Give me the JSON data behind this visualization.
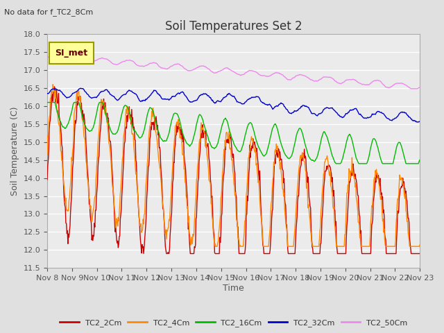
{
  "title": "Soil Temperatures Set 2",
  "subtitle": "No data for f_TC2_8Cm",
  "xlabel": "Time",
  "ylabel": "Soil Temperature (C)",
  "ylim": [
    11.5,
    18.0
  ],
  "yticks": [
    11.5,
    12.0,
    12.5,
    13.0,
    13.5,
    14.0,
    14.5,
    15.0,
    15.5,
    16.0,
    16.5,
    17.0,
    17.5,
    18.0
  ],
  "xtick_labels": [
    "Nov 8",
    "Nov 9",
    "Nov 10",
    "Nov 11",
    "Nov 12",
    "Nov 13",
    "Nov 14",
    "Nov 15",
    "Nov 16",
    "Nov 17",
    "Nov 18",
    "Nov 19",
    "Nov 20",
    "Nov 21",
    "Nov 22",
    "Nov 23"
  ],
  "series_colors": {
    "TC2_2Cm": "#cc0000",
    "TC2_4Cm": "#ff8800",
    "TC2_16Cm": "#00bb00",
    "TC2_32Cm": "#0000cc",
    "TC2_50Cm": "#ee88ee"
  },
  "legend_label": "SI_met",
  "legend_box_color": "#ffff99",
  "legend_box_edge": "#999900",
  "background_color": "#e0e0e0",
  "plot_bg_color": "#ebebeb",
  "grid_color": "#ffffff",
  "title_fontsize": 12,
  "axis_fontsize": 9,
  "tick_fontsize": 8,
  "n_points": 720
}
